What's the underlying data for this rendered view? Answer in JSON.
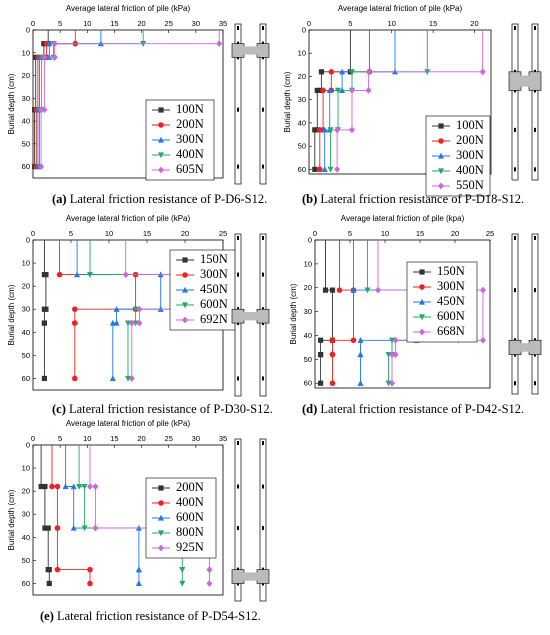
{
  "colors": {
    "s1": "#333333",
    "s2": "#ee2222",
    "s3": "#2277ee",
    "s4": "#22aa66",
    "s5": "#cc66dd",
    "pile_fill": "#bbbbbb"
  },
  "chart_data": [
    {
      "type": "line",
      "id": "a",
      "caption_label": "(a)",
      "caption_text": " Lateral friction resistance of P-D6-S12.",
      "title": "Average lateral friction of pile (kPa)",
      "ylabel": "Burial depth (cm)",
      "xlim": [
        0,
        35
      ],
      "ylim": [
        0,
        65
      ],
      "xticks": [
        "0",
        "5",
        "10",
        "15",
        "20",
        "25",
        "30",
        "35"
      ],
      "yticks": [
        "0",
        "10",
        "20",
        "30",
        "40",
        "50",
        "60"
      ],
      "yvals": [
        0,
        10,
        20,
        30,
        40,
        50,
        60
      ],
      "xtickvals": [
        0,
        5,
        10,
        15,
        20,
        25,
        30,
        35
      ],
      "legend_position": "inside right",
      "depths": [
        6,
        12,
        35,
        60
      ],
      "series": [
        {
          "name": "100N",
          "values": [
            2.8,
            2.0,
            0.5,
            0.3
          ]
        },
        {
          "name": "200N",
          "values": [
            7.8,
            2.5,
            0.9,
            0.6
          ]
        },
        {
          "name": "300N",
          "values": [
            12.5,
            3.0,
            1.2,
            0.9
          ]
        },
        {
          "name": "400N",
          "values": [
            20.3,
            3.8,
            1.6,
            1.2
          ]
        },
        {
          "name": "605N",
          "values": [
            34.3,
            4.0,
            2.1,
            1.5
          ]
        }
      ],
      "pile_segment": [
        6,
        12
      ]
    },
    {
      "type": "line",
      "id": "b",
      "caption_label": "(b)",
      "caption_text": " Lateral friction resistance of P-D18-S12.",
      "title": "Average lateral friction of pile (kPa)",
      "ylabel": "Burial depth (cm)",
      "xlim": [
        0,
        22
      ],
      "ylim": [
        0,
        62
      ],
      "xticks": [
        "0",
        "5",
        "10",
        "15",
        "20"
      ],
      "yticks": [
        "0",
        "10",
        "20",
        "30",
        "40",
        "50",
        "60"
      ],
      "yvals": [
        0,
        10,
        20,
        30,
        40,
        50,
        60
      ],
      "xtickvals": [
        0,
        5,
        10,
        15,
        20
      ],
      "legend_position": "inside bottom right",
      "depths": [
        18,
        26,
        43,
        60
      ],
      "series": [
        {
          "name": "100N",
          "values": [
            5.0,
            1.5,
            1.0,
            0.7
          ]
        },
        {
          "name": "200N",
          "values": [
            7.3,
            2.7,
            1.7,
            1.3
          ]
        },
        {
          "name": "300N",
          "values": [
            10.4,
            4.0,
            2.5,
            1.9
          ]
        },
        {
          "name": "400N",
          "values": [
            14.3,
            5.2,
            3.5,
            2.6
          ]
        },
        {
          "name": "550N",
          "values": [
            21.0,
            7.2,
            5.2,
            3.4
          ]
        }
      ],
      "pile_segment": [
        18,
        26
      ]
    },
    {
      "type": "line",
      "id": "c",
      "caption_label": "(c)",
      "caption_text": " Lateral friction resistance of P-D30-S12.",
      "title": "Average lateral friction of pile (kPa)",
      "ylabel": "Burial depth (cm)",
      "xlim": [
        0,
        25
      ],
      "ylim": [
        0,
        65
      ],
      "xticks": [
        "0",
        "5",
        "10",
        "15",
        "20",
        "25"
      ],
      "yticks": [
        "0",
        "10",
        "20",
        "30",
        "40",
        "50",
        "60"
      ],
      "yvals": [
        0,
        10,
        20,
        30,
        40,
        50,
        60
      ],
      "xtickvals": [
        0,
        5,
        10,
        15,
        20,
        25
      ],
      "legend_position": "inside right",
      "depths": [
        15,
        30,
        36,
        60
      ],
      "series": [
        {
          "name": "150N",
          "values": [
            1.5,
            1.7,
            1.5,
            1.5
          ]
        },
        {
          "name": "300N",
          "values": [
            3.5,
            13.5,
            5.5,
            5.5
          ]
        },
        {
          "name": "450N",
          "values": [
            5.8,
            16.8,
            11.0,
            10.5
          ]
        },
        {
          "name": "600N",
          "values": [
            7.5,
            21.5,
            13.5,
            12.5
          ]
        },
        {
          "name": "692N",
          "values": [
            12.2,
            24.0,
            14.0,
            13.0
          ]
        }
      ],
      "pile_segment": [
        30,
        36
      ]
    },
    {
      "type": "line",
      "id": "d",
      "caption_label": "(d)",
      "caption_text": " Lateral friction resistance of P-D42-S12.",
      "title": "Average lateral friction of pile (kpa)",
      "ylabel": "Burial depth (cm)",
      "xlim": [
        0,
        25
      ],
      "ylim": [
        0,
        62
      ],
      "xticks": [
        "0",
        "5",
        "10",
        "15",
        "20",
        "25"
      ],
      "yticks": [
        "0",
        "10",
        "20",
        "30",
        "40",
        "50",
        "60"
      ],
      "yvals": [
        0,
        10,
        20,
        30,
        40,
        50,
        60
      ],
      "xtickvals": [
        0,
        5,
        10,
        15,
        20,
        25
      ],
      "legend_position": "inside left",
      "depths": [
        21,
        42,
        48,
        60
      ],
      "series": [
        {
          "name": "150N",
          "values": [
            1.5,
            2.5,
            0.8,
            0.8
          ]
        },
        {
          "name": "300N",
          "values": [
            3.5,
            5.5,
            2.5,
            2.5
          ]
        },
        {
          "name": "450N",
          "values": [
            5.5,
            14.5,
            6.5,
            6.5
          ]
        },
        {
          "name": "600N",
          "values": [
            7.5,
            20.5,
            11.0,
            10.5
          ]
        },
        {
          "name": "668N",
          "values": [
            9.0,
            24.0,
            11.5,
            11.0
          ]
        }
      ],
      "pile_segment": [
        42,
        48
      ]
    },
    {
      "type": "line",
      "id": "e",
      "caption_label": "(e)",
      "caption_text": " Lateral friction resistance of P-D54-S12.",
      "title": "Average lateral friction of pile (kPa)",
      "ylabel": "Burial depth (cm)",
      "xlim": [
        0,
        35
      ],
      "ylim": [
        0,
        65
      ],
      "xticks": [
        "0",
        "5",
        "10",
        "15",
        "20",
        "25",
        "30",
        "35"
      ],
      "yticks": [
        "0",
        "10",
        "20",
        "30",
        "40",
        "50",
        "60"
      ],
      "yvals": [
        0,
        10,
        20,
        30,
        40,
        50,
        60
      ],
      "xtickvals": [
        0,
        5,
        10,
        15,
        20,
        25,
        30,
        35
      ],
      "legend_position": "inside right",
      "depths": [
        18,
        36,
        54,
        60
      ],
      "series": [
        {
          "name": "200N",
          "values": [
            1.5,
            2.2,
            2.8,
            3.0
          ]
        },
        {
          "name": "400N",
          "values": [
            3.5,
            4.5,
            4.5,
            10.5
          ]
        },
        {
          "name": "600N",
          "values": [
            6.0,
            7.5,
            19.5,
            19.5
          ]
        },
        {
          "name": "800N",
          "values": [
            8.5,
            9.5,
            27.5,
            27.5
          ]
        },
        {
          "name": "925N",
          "values": [
            10.5,
            11.5,
            32.5,
            32.5
          ]
        }
      ],
      "pile_segment": [
        54,
        60
      ]
    }
  ]
}
